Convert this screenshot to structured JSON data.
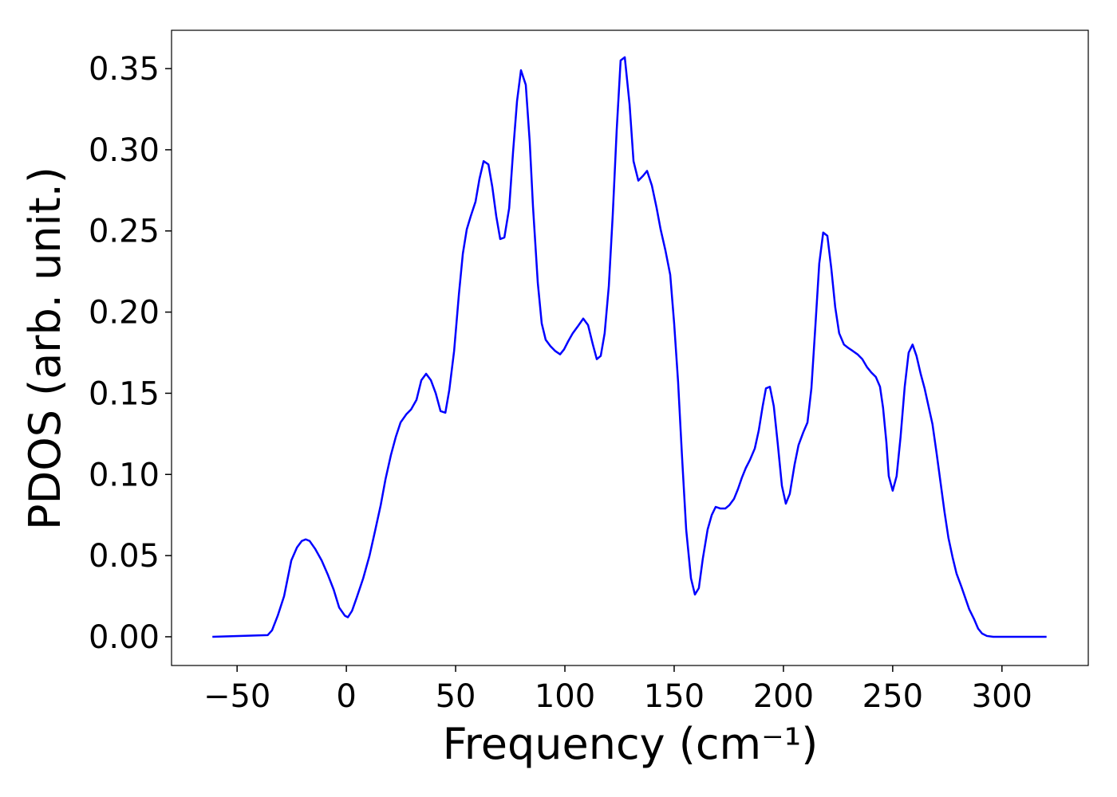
{
  "chart_data": {
    "type": "line",
    "x_label": "Frequency (cm⁻¹)",
    "y_label": "PDOS (arb. unit.)",
    "x": [
      -61.3,
      -36,
      -34,
      -31.4,
      -28.5,
      -25.2,
      -22.6,
      -20.4,
      -18.6,
      -16.8,
      -14.2,
      -11.3,
      -8.4,
      -5.8,
      -3.3,
      -0.7,
      0.7,
      2.6,
      4.7,
      7.7,
      10.6,
      13.1,
      15.7,
      17.9,
      20.4,
      22.6,
      24.8,
      27.4,
      29.6,
      32.1,
      34.3,
      36.5,
      38.7,
      40.9,
      43.1,
      45.3,
      47.1,
      49.3,
      51.5,
      53.3,
      55.1,
      56.9,
      59.1,
      60.9,
      62.8,
      65.0,
      66.8,
      68.6,
      70.4,
      72.3,
      74.5,
      76.3,
      78.1,
      79.9,
      82.1,
      83.9,
      85.4,
      87.6,
      89.4,
      91.2,
      93.4,
      95.6,
      97.8,
      99.6,
      101.5,
      103.6,
      105.8,
      108.4,
      110.6,
      112.8,
      114.6,
      116.4,
      118.2,
      120.1,
      121.9,
      123.7,
      125.5,
      127.4,
      129.6,
      131.4,
      133.6,
      135.8,
      137.6,
      139.8,
      142.0,
      143.8,
      146.0,
      148.2,
      150.0,
      151.8,
      153.6,
      155.5,
      157.7,
      159.5,
      161.3,
      163.1,
      165.3,
      167.2,
      169.0,
      171.2,
      173.4,
      175.2,
      177.4,
      179.2,
      181.0,
      182.8,
      184.7,
      186.9,
      188.7,
      190.5,
      192.0,
      193.8,
      195.6,
      197.4,
      199.3,
      201.1,
      202.9,
      205.1,
      206.9,
      209.1,
      211.0,
      212.8,
      214.6,
      216.4,
      218.2,
      220.1,
      221.9,
      223.7,
      225.5,
      227.7,
      229.6,
      231.8,
      233.9,
      236.1,
      238.3,
      240.1,
      242.3,
      244.2,
      245.6,
      247.1,
      248.2,
      250.0,
      251.8,
      253.6,
      255.5,
      257.3,
      259.1,
      260.9,
      262.8,
      264.6,
      266.4,
      268.2,
      270.1,
      271.9,
      273.7,
      275.5,
      277.4,
      279.2,
      281.4,
      283.2,
      285.0,
      287.2,
      289.1,
      290.9,
      293.1,
      296,
      320.4
    ],
    "series": [
      {
        "color": "#0000ff",
        "values": [
          0,
          0.001,
          0.004,
          0.013,
          0.025,
          0.047,
          0.055,
          0.059,
          0.06,
          0.059,
          0.054,
          0.047,
          0.038,
          0.029,
          0.018,
          0.013,
          0.012,
          0.016,
          0.024,
          0.036,
          0.05,
          0.065,
          0.081,
          0.097,
          0.112,
          0.123,
          0.132,
          0.137,
          0.14,
          0.146,
          0.158,
          0.162,
          0.158,
          0.15,
          0.139,
          0.138,
          0.152,
          0.176,
          0.211,
          0.236,
          0.251,
          0.259,
          0.268,
          0.282,
          0.293,
          0.291,
          0.277,
          0.259,
          0.245,
          0.246,
          0.264,
          0.299,
          0.33,
          0.349,
          0.34,
          0.305,
          0.265,
          0.218,
          0.193,
          0.183,
          0.179,
          0.176,
          0.174,
          0.177,
          0.182,
          0.187,
          0.191,
          0.196,
          0.192,
          0.18,
          0.171,
          0.173,
          0.187,
          0.216,
          0.26,
          0.312,
          0.355,
          0.357,
          0.328,
          0.293,
          0.281,
          0.284,
          0.287,
          0.278,
          0.264,
          0.251,
          0.238,
          0.223,
          0.193,
          0.157,
          0.111,
          0.066,
          0.036,
          0.026,
          0.03,
          0.048,
          0.066,
          0.075,
          0.08,
          0.079,
          0.079,
          0.081,
          0.085,
          0.091,
          0.098,
          0.104,
          0.109,
          0.116,
          0.127,
          0.142,
          0.153,
          0.154,
          0.142,
          0.119,
          0.093,
          0.082,
          0.088,
          0.106,
          0.118,
          0.126,
          0.132,
          0.153,
          0.191,
          0.23,
          0.249,
          0.247,
          0.227,
          0.203,
          0.187,
          0.18,
          0.178,
          0.176,
          0.174,
          0.171,
          0.166,
          0.163,
          0.16,
          0.154,
          0.141,
          0.12,
          0.099,
          0.09,
          0.099,
          0.123,
          0.154,
          0.175,
          0.18,
          0.173,
          0.162,
          0.153,
          0.142,
          0.131,
          0.113,
          0.095,
          0.077,
          0.061,
          0.049,
          0.039,
          0.031,
          0.024,
          0.017,
          0.011,
          0.005,
          0.002,
          0.0005,
          0,
          0
        ]
      }
    ],
    "xlim": [
      -80,
      339.5
    ],
    "ylim": [
      -0.0177,
      0.3736
    ],
    "xticks": [
      {
        "value": -50,
        "label": "−50"
      },
      0,
      50,
      100,
      150,
      200,
      250,
      300
    ],
    "yticks": [
      {
        "value": 0,
        "label": "0.00"
      },
      {
        "value": 0.05,
        "label": "0.05"
      },
      {
        "value": 0.1,
        "label": "0.10"
      },
      {
        "value": 0.15,
        "label": "0.15"
      },
      {
        "value": 0.2,
        "label": "0.20"
      },
      {
        "value": 0.25,
        "label": "0.25"
      },
      {
        "value": 0.3,
        "label": "0.30"
      },
      {
        "value": 0.35,
        "label": "0.35"
      }
    ]
  }
}
